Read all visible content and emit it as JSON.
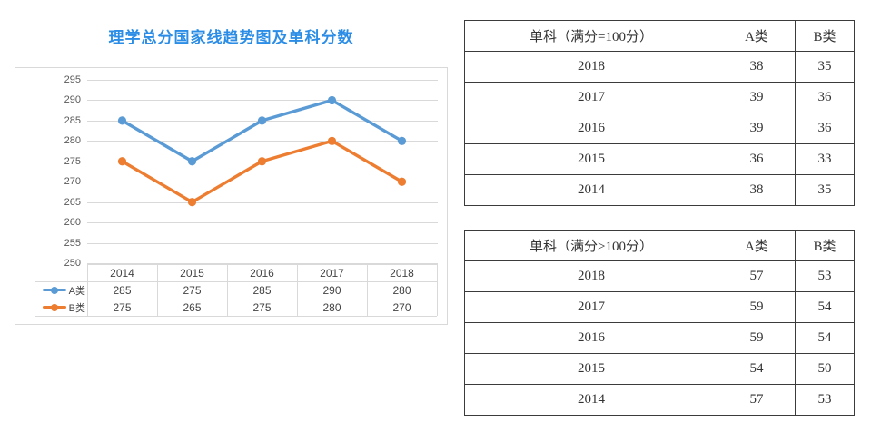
{
  "chart_data": {
    "type": "line",
    "title": "理学总分国家线趋势图及单科分数",
    "title_color": "#2b8de6",
    "categories": [
      "2014",
      "2015",
      "2016",
      "2017",
      "2018"
    ],
    "series": [
      {
        "name": "A类",
        "color": "#5B9BD5",
        "values": [
          285,
          275,
          285,
          290,
          280
        ]
      },
      {
        "name": "B类",
        "color": "#ED7D31",
        "values": [
          275,
          265,
          275,
          280,
          270
        ]
      }
    ],
    "xlabel": "",
    "ylabel": "",
    "ylim": [
      250,
      295
    ],
    "ytick_step": 5,
    "grid": true,
    "gridline_color": "#d9d9d9",
    "axis_text_color": "#595959",
    "legend_position": "left-of-data-table",
    "data_table": true
  },
  "tables": [
    {
      "title": "单科（满分=100分）",
      "col_a": "A类",
      "col_b": "B类",
      "rows": [
        {
          "year": "2018",
          "a": "38",
          "b": "35"
        },
        {
          "year": "2017",
          "a": "39",
          "b": "36"
        },
        {
          "year": "2016",
          "a": "39",
          "b": "36"
        },
        {
          "year": "2015",
          "a": "36",
          "b": "33"
        },
        {
          "year": "2014",
          "a": "38",
          "b": "35"
        }
      ]
    },
    {
      "title": "单科（满分>100分）",
      "col_a": "A类",
      "col_b": "B类",
      "rows": [
        {
          "year": "2018",
          "a": "57",
          "b": "53"
        },
        {
          "year": "2017",
          "a": "59",
          "b": "54"
        },
        {
          "year": "2016",
          "a": "59",
          "b": "54"
        },
        {
          "year": "2015",
          "a": "54",
          "b": "50"
        },
        {
          "year": "2014",
          "a": "57",
          "b": "53"
        }
      ]
    }
  ]
}
